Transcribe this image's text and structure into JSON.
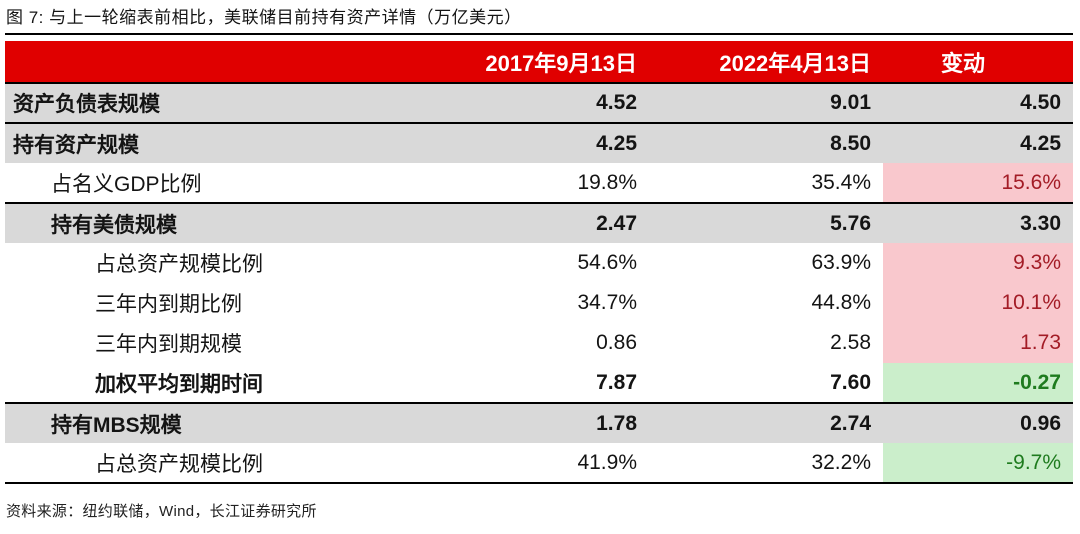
{
  "title": "图 7: 与上一轮缩表前相比，美联储目前持有资产详情（万亿美元）",
  "source": "资料来源：纽约联储，Wind，长江证券研究所",
  "colors": {
    "header_bg": "#e00000",
    "header_text": "#ffffff",
    "shaded_row_bg": "#d9d9d9",
    "increase_bg": "#f9c8cd",
    "increase_text": "#a31c26",
    "decrease_bg": "#cbeecb",
    "decrease_text": "#1e7b1e",
    "rule_line": "#000000"
  },
  "chart_data": {
    "type": "table",
    "columns": [
      "",
      "2017年9月13日",
      "2022年4月13日",
      "变动"
    ],
    "rows": [
      {
        "label": "资产负债表规模",
        "indent": 0,
        "bold": true,
        "shaded": true,
        "section_start": true,
        "v2017": "4.52",
        "v2022": "9.01",
        "change": "4.50",
        "change_style": "neutral"
      },
      {
        "label": "持有资产规模",
        "indent": 0,
        "bold": true,
        "shaded": true,
        "section_start": true,
        "v2017": "4.25",
        "v2022": "8.50",
        "change": "4.25",
        "change_style": "neutral"
      },
      {
        "label": "占名义GDP比例",
        "indent": 1,
        "bold": false,
        "shaded": false,
        "section_start": false,
        "v2017": "19.8%",
        "v2022": "35.4%",
        "change": "15.6%",
        "change_style": "up"
      },
      {
        "label": "持有美债规模",
        "indent": 1,
        "bold": true,
        "shaded": true,
        "section_start": true,
        "v2017": "2.47",
        "v2022": "5.76",
        "change": "3.30",
        "change_style": "neutral"
      },
      {
        "label": "占总资产规模比例",
        "indent": 2,
        "bold": false,
        "shaded": false,
        "section_start": false,
        "v2017": "54.6%",
        "v2022": "63.9%",
        "change": "9.3%",
        "change_style": "up"
      },
      {
        "label": "三年内到期比例",
        "indent": 2,
        "bold": false,
        "shaded": false,
        "section_start": false,
        "v2017": "34.7%",
        "v2022": "44.8%",
        "change": "10.1%",
        "change_style": "up"
      },
      {
        "label": "三年内到期规模",
        "indent": 2,
        "bold": false,
        "shaded": false,
        "section_start": false,
        "v2017": "0.86",
        "v2022": "2.58",
        "change": "1.73",
        "change_style": "up"
      },
      {
        "label": "加权平均到期时间",
        "indent": 2,
        "bold": true,
        "shaded": false,
        "section_start": false,
        "v2017": "7.87",
        "v2022": "7.60",
        "change": "-0.27",
        "change_style": "down"
      },
      {
        "label": "持有MBS规模",
        "indent": 1,
        "bold": true,
        "shaded": true,
        "section_start": true,
        "v2017": "1.78",
        "v2022": "2.74",
        "change": "0.96",
        "change_style": "neutral"
      },
      {
        "label": "占总资产规模比例",
        "indent": 2,
        "bold": false,
        "shaded": false,
        "section_start": false,
        "v2017": "41.9%",
        "v2022": "32.2%",
        "change": "-9.7%",
        "change_style": "down"
      }
    ]
  }
}
